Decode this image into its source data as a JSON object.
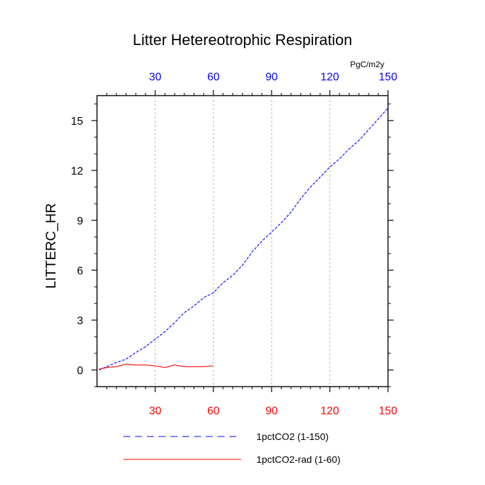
{
  "chart_data": {
    "type": "line",
    "title": "Litter Hetereotrophic Respiration",
    "units": "PgC/m2y",
    "ylabel": "LITTERC_HR",
    "xlim": [
      0,
      150
    ],
    "ylim": [
      -1,
      16.5
    ],
    "x_ticks_bottom": [
      30,
      60,
      90,
      120,
      150
    ],
    "x_ticks_top": [
      30,
      60,
      90,
      120,
      150
    ],
    "y_ticks": [
      0,
      3,
      6,
      9,
      12,
      15
    ],
    "grid": "vertical dotted at x ticks",
    "legend_placement": "bottom",
    "colors": {
      "bottom_axis": "#ff0000",
      "top_axis": "#0000ff"
    },
    "series": [
      {
        "name": "1pctCO2 (1-150)",
        "color": "#0000ff",
        "dash": "dashed",
        "axis": "top",
        "x": [
          1,
          5,
          10,
          15,
          20,
          25,
          30,
          35,
          40,
          45,
          50,
          55,
          60,
          65,
          70,
          75,
          80,
          85,
          90,
          95,
          100,
          105,
          110,
          115,
          120,
          125,
          130,
          135,
          140,
          145,
          150
        ],
        "y": [
          0.0,
          0.2,
          0.45,
          0.65,
          1.05,
          1.4,
          1.85,
          2.3,
          2.85,
          3.45,
          3.85,
          4.35,
          4.65,
          5.25,
          5.7,
          6.3,
          7.1,
          7.75,
          8.3,
          8.85,
          9.5,
          10.3,
          11.0,
          11.6,
          12.2,
          12.7,
          13.3,
          13.8,
          14.45,
          15.1,
          15.75
        ]
      },
      {
        "name": "1pctCO2-rad (1-60)",
        "color": "#ff0000",
        "dash": "solid",
        "axis": "bottom",
        "x": [
          1,
          5,
          10,
          15,
          20,
          25,
          30,
          35,
          40,
          45,
          50,
          55,
          60
        ],
        "y": [
          0.05,
          0.15,
          0.2,
          0.35,
          0.3,
          0.3,
          0.25,
          0.15,
          0.3,
          0.2,
          0.2,
          0.2,
          0.25
        ]
      }
    ]
  }
}
